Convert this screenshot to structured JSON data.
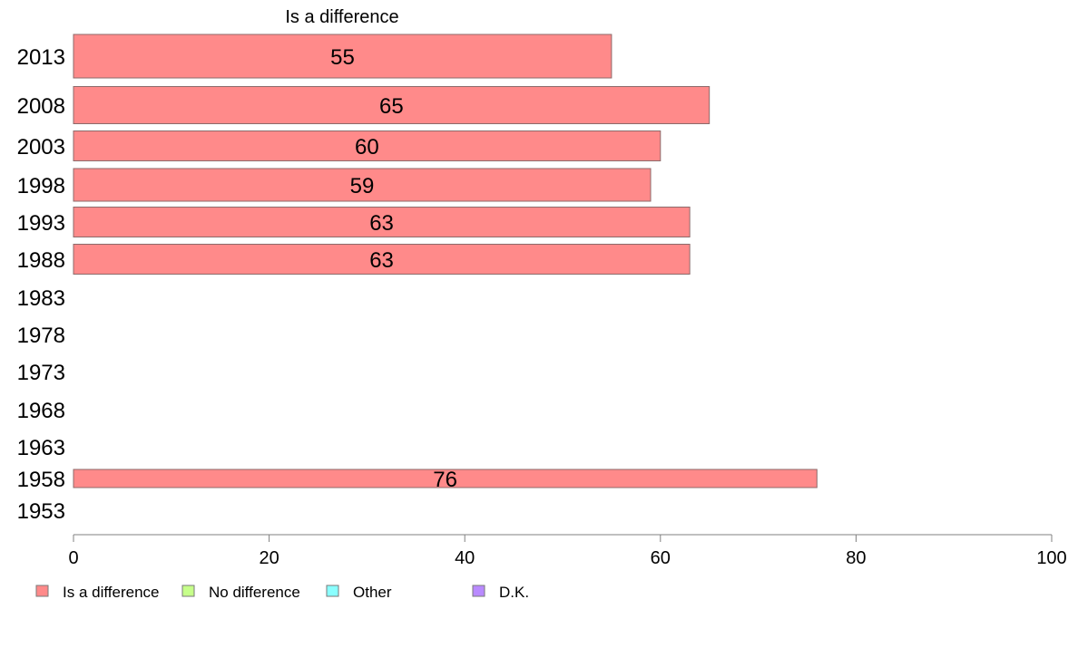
{
  "chart_data": {
    "type": "bar",
    "orientation": "horizontal",
    "title": "Is a difference",
    "categories": [
      "2013",
      "2008",
      "2003",
      "1998",
      "1993",
      "1988",
      "1983",
      "1978",
      "1973",
      "1968",
      "1963",
      "1958",
      "1953"
    ],
    "series": [
      {
        "name": "Is a difference",
        "color": "#ff8a8a",
        "values": [
          55,
          65,
          60,
          59,
          63,
          63,
          null,
          null,
          null,
          null,
          null,
          76,
          null
        ]
      }
    ],
    "xlim": [
      0,
      100
    ],
    "xticks": [
      0,
      20,
      40,
      60,
      80,
      100
    ],
    "grid": false,
    "legend": {
      "position": "bottom-left",
      "entries": [
        {
          "label": "Is a difference",
          "color": "#ff8a8a"
        },
        {
          "label": "No difference",
          "color": "#c6ff8a"
        },
        {
          "label": "Other",
          "color": "#8affff"
        },
        {
          "label": "D.K.",
          "color": "#b98aff"
        }
      ]
    }
  }
}
